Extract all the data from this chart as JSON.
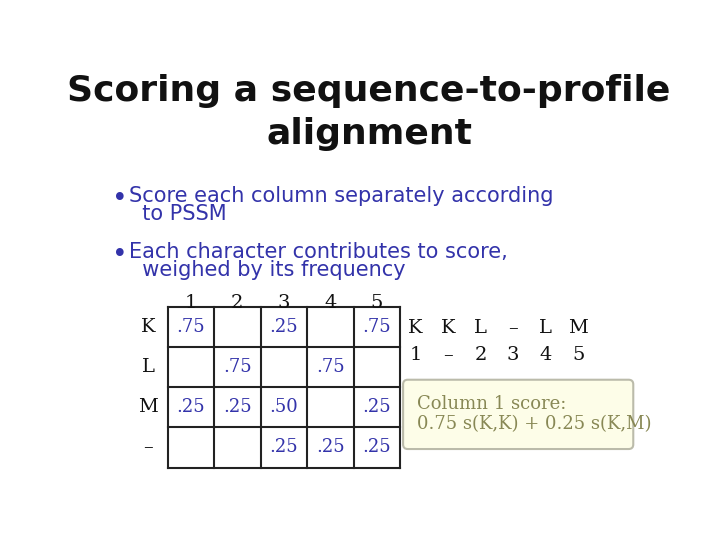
{
  "title": "Scoring a sequence-to-profile\nalignment",
  "title_color": "#111111",
  "title_fontsize": 24,
  "bullet_color": "#3333aa",
  "bullet_fontsize": 15,
  "bullet1_line1": "Score each column separately according",
  "bullet1_line2": "  to PSSM",
  "bullet2_line1": "Each character contributes to score,",
  "bullet2_line2": "  weighed by its frequency",
  "table_row_labels": [
    "K",
    "L",
    "M",
    "–"
  ],
  "table_col_labels": [
    "1",
    "2",
    "3",
    "4",
    "5"
  ],
  "table_data": [
    [
      ".75",
      "",
      ".25",
      "",
      ".75"
    ],
    [
      "",
      ".75",
      "",
      ".75",
      ""
    ],
    [
      ".25",
      ".25",
      ".50",
      "",
      ".25"
    ],
    [
      "",
      "",
      ".25",
      ".25",
      ".25"
    ]
  ],
  "table_label_color": "#111111",
  "table_val_color": "#3333aa",
  "seq_line1_items": [
    "K",
    "K",
    "L",
    "–",
    "L",
    "M"
  ],
  "seq_line2_items": [
    "1",
    "–",
    "2",
    "3",
    "4",
    "5"
  ],
  "seq_color": "#111111",
  "box_text_line1": "Column 1 score:",
  "box_text_line2": "0.75 s(K,K) + 0.25 s(K,M)",
  "box_text_color": "#888855",
  "box_facecolor": "#fdfde8",
  "box_edgecolor": "#bbbbaa",
  "bg_color": "#ffffff"
}
